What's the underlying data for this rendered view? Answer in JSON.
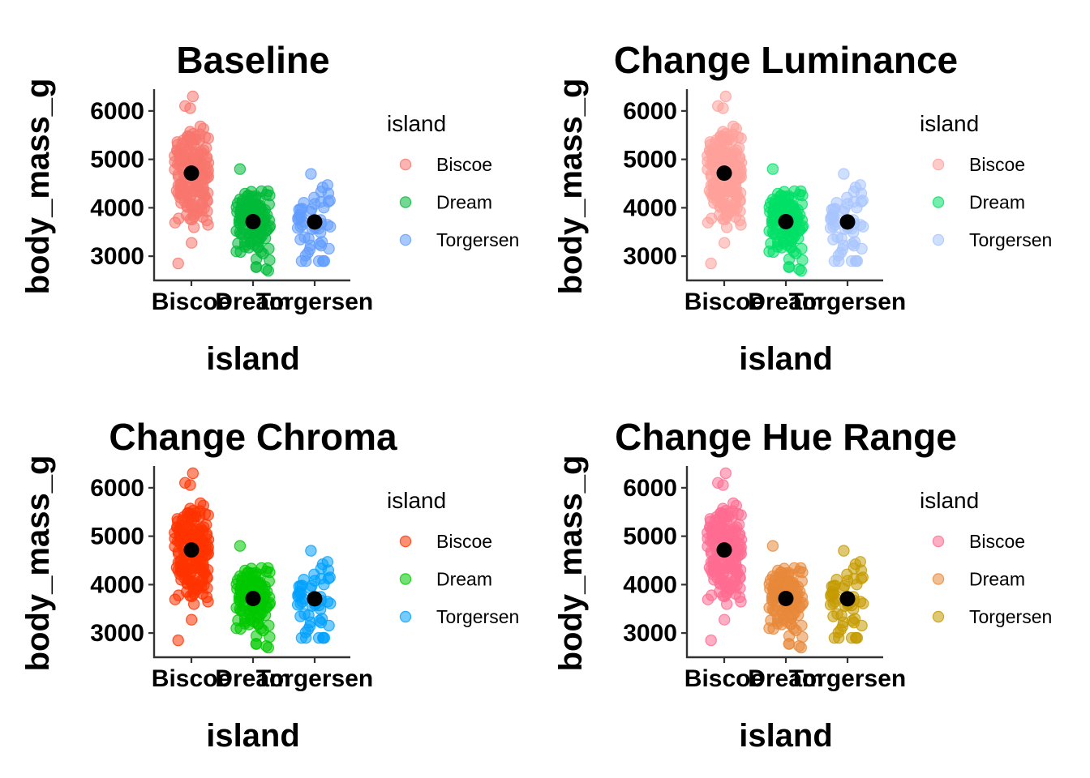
{
  "chart_data": [
    {
      "type": "scatter",
      "title": "Baseline",
      "xlabel": "island",
      "ylabel": "body_mass_g",
      "categories": [
        "Biscoe",
        "Dream",
        "Torgersen"
      ],
      "y_ticks": [
        3000,
        4000,
        5000,
        6000
      ],
      "ylim": [
        2500,
        6450
      ],
      "legend_title": "island",
      "legend_position": "right",
      "colors": [
        "#F8766D",
        "#00BA38",
        "#619CFF"
      ],
      "means": [
        4716,
        3713,
        3706
      ],
      "ranges": [
        [
          2850,
          6300
        ],
        [
          2700,
          4800
        ],
        [
          2900,
          4700
        ]
      ]
    },
    {
      "type": "scatter",
      "title": "Change Luminance",
      "xlabel": "island",
      "ylabel": "body_mass_g",
      "categories": [
        "Biscoe",
        "Dream",
        "Torgersen"
      ],
      "y_ticks": [
        3000,
        4000,
        5000,
        6000
      ],
      "ylim": [
        2500,
        6450
      ],
      "legend_title": "island",
      "legend_position": "right",
      "colors": [
        "#FFA09A",
        "#00E066",
        "#A7C4FF"
      ],
      "means": [
        4716,
        3713,
        3706
      ],
      "ranges": [
        [
          2850,
          6300
        ],
        [
          2700,
          4800
        ],
        [
          2900,
          4700
        ]
      ]
    },
    {
      "type": "scatter",
      "title": "Change Chroma",
      "xlabel": "island",
      "ylabel": "body_mass_g",
      "categories": [
        "Biscoe",
        "Dream",
        "Torgersen"
      ],
      "y_ticks": [
        3000,
        4000,
        5000,
        6000
      ],
      "ylim": [
        2500,
        6450
      ],
      "legend_title": "island",
      "legend_position": "right",
      "colors": [
        "#FF3300",
        "#00C800",
        "#00A0FF"
      ],
      "means": [
        4716,
        3713,
        3706
      ],
      "ranges": [
        [
          2850,
          6300
        ],
        [
          2700,
          4800
        ],
        [
          2900,
          4700
        ]
      ]
    },
    {
      "type": "scatter",
      "title": "Change Hue Range",
      "xlabel": "island",
      "ylabel": "body_mass_g",
      "categories": [
        "Biscoe",
        "Dream",
        "Torgersen"
      ],
      "y_ticks": [
        3000,
        4000,
        5000,
        6000
      ],
      "ylim": [
        2500,
        6450
      ],
      "legend_title": "island",
      "legend_position": "right",
      "colors": [
        "#FF6C91",
        "#E7883A",
        "#C49A00"
      ],
      "means": [
        4716,
        3713,
        3706
      ],
      "ranges": [
        [
          2850,
          6300
        ],
        [
          2700,
          4800
        ],
        [
          2900,
          4700
        ]
      ]
    }
  ]
}
